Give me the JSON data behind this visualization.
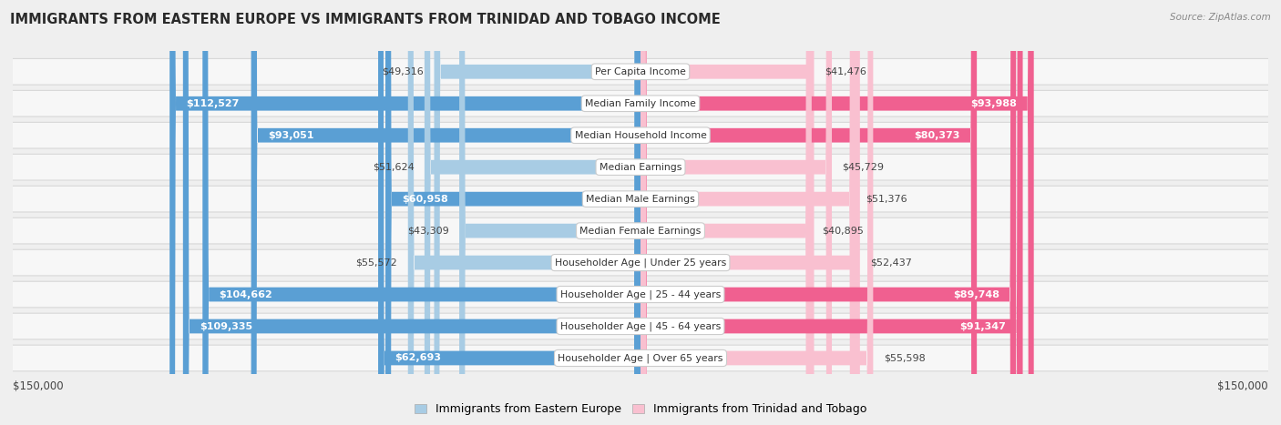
{
  "title": "IMMIGRANTS FROM EASTERN EUROPE VS IMMIGRANTS FROM TRINIDAD AND TOBAGO INCOME",
  "source": "Source: ZipAtlas.com",
  "categories": [
    "Per Capita Income",
    "Median Family Income",
    "Median Household Income",
    "Median Earnings",
    "Median Male Earnings",
    "Median Female Earnings",
    "Householder Age | Under 25 years",
    "Householder Age | 25 - 44 years",
    "Householder Age | 45 - 64 years",
    "Householder Age | Over 65 years"
  ],
  "eastern_europe": [
    49316,
    112527,
    93051,
    51624,
    60958,
    43309,
    55572,
    104662,
    109335,
    62693
  ],
  "trinidad": [
    41476,
    93988,
    80373,
    45729,
    51376,
    40895,
    52437,
    89748,
    91347,
    55598
  ],
  "max_val": 150000,
  "bar_color_east_light": "#a8cce4",
  "bar_color_east_dark": "#5a9fd4",
  "bar_color_trin_light": "#f9c0d0",
  "bar_color_trin_dark": "#f06090",
  "bg_color": "#efefef",
  "row_bg": "#f7f7f7",
  "row_border": "#d8d8d8",
  "legend_label_east": "Immigrants from Eastern Europe",
  "legend_label_trin": "Immigrants from Trinidad and Tobago",
  "axis_label_left": "$150,000",
  "axis_label_right": "$150,000",
  "large_threshold": 60000,
  "medium_threshold": 35000
}
